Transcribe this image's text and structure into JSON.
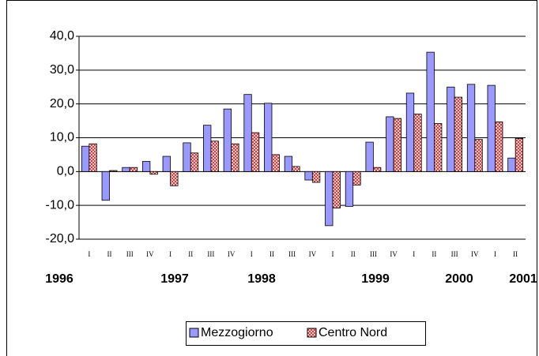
{
  "chart_data": {
    "type": "bar",
    "categories": [
      "I",
      "II",
      "III",
      "IV",
      "I",
      "II",
      "III",
      "IV",
      "I",
      "II",
      "III",
      "IV",
      "I",
      "II",
      "III",
      "IV",
      "I",
      "II",
      "III",
      "IV",
      "I",
      "II"
    ],
    "years": [
      "1996",
      "1997",
      "1998",
      "1999",
      "2000",
      "2001"
    ],
    "series": [
      {
        "name": "Mezzogiorno",
        "color": "#9999ff",
        "values": [
          7.5,
          -8.5,
          1.2,
          3.0,
          4.5,
          8.5,
          13.7,
          18.5,
          22.8,
          20.2,
          4.5,
          -2.5,
          -16.0,
          -10.3,
          8.7,
          16.2,
          23.2,
          35.3,
          25.0,
          25.8,
          25.5,
          4.0
        ]
      },
      {
        "name": "Centro Nord",
        "color": "#cc3333",
        "values": [
          8.2,
          0.3,
          1.2,
          -0.8,
          -4.2,
          5.5,
          9.0,
          8.2,
          11.5,
          5.0,
          1.5,
          -3.2,
          -10.8,
          -4.0,
          1.2,
          15.7,
          17.0,
          14.2,
          22.0,
          9.5,
          14.7,
          9.8
        ]
      }
    ],
    "ylim": [
      -20,
      40
    ],
    "yticks": [
      {
        "value": -20,
        "label": "-20,0"
      },
      {
        "value": -10,
        "label": "-10,0"
      },
      {
        "value": 0,
        "label": "0,0"
      },
      {
        "value": 10,
        "label": "10,0"
      },
      {
        "value": 20,
        "label": "20,0"
      },
      {
        "value": 30,
        "label": "30,0"
      },
      {
        "value": 40,
        "label": "40,0"
      }
    ],
    "grid": true,
    "legend": "bottom"
  }
}
